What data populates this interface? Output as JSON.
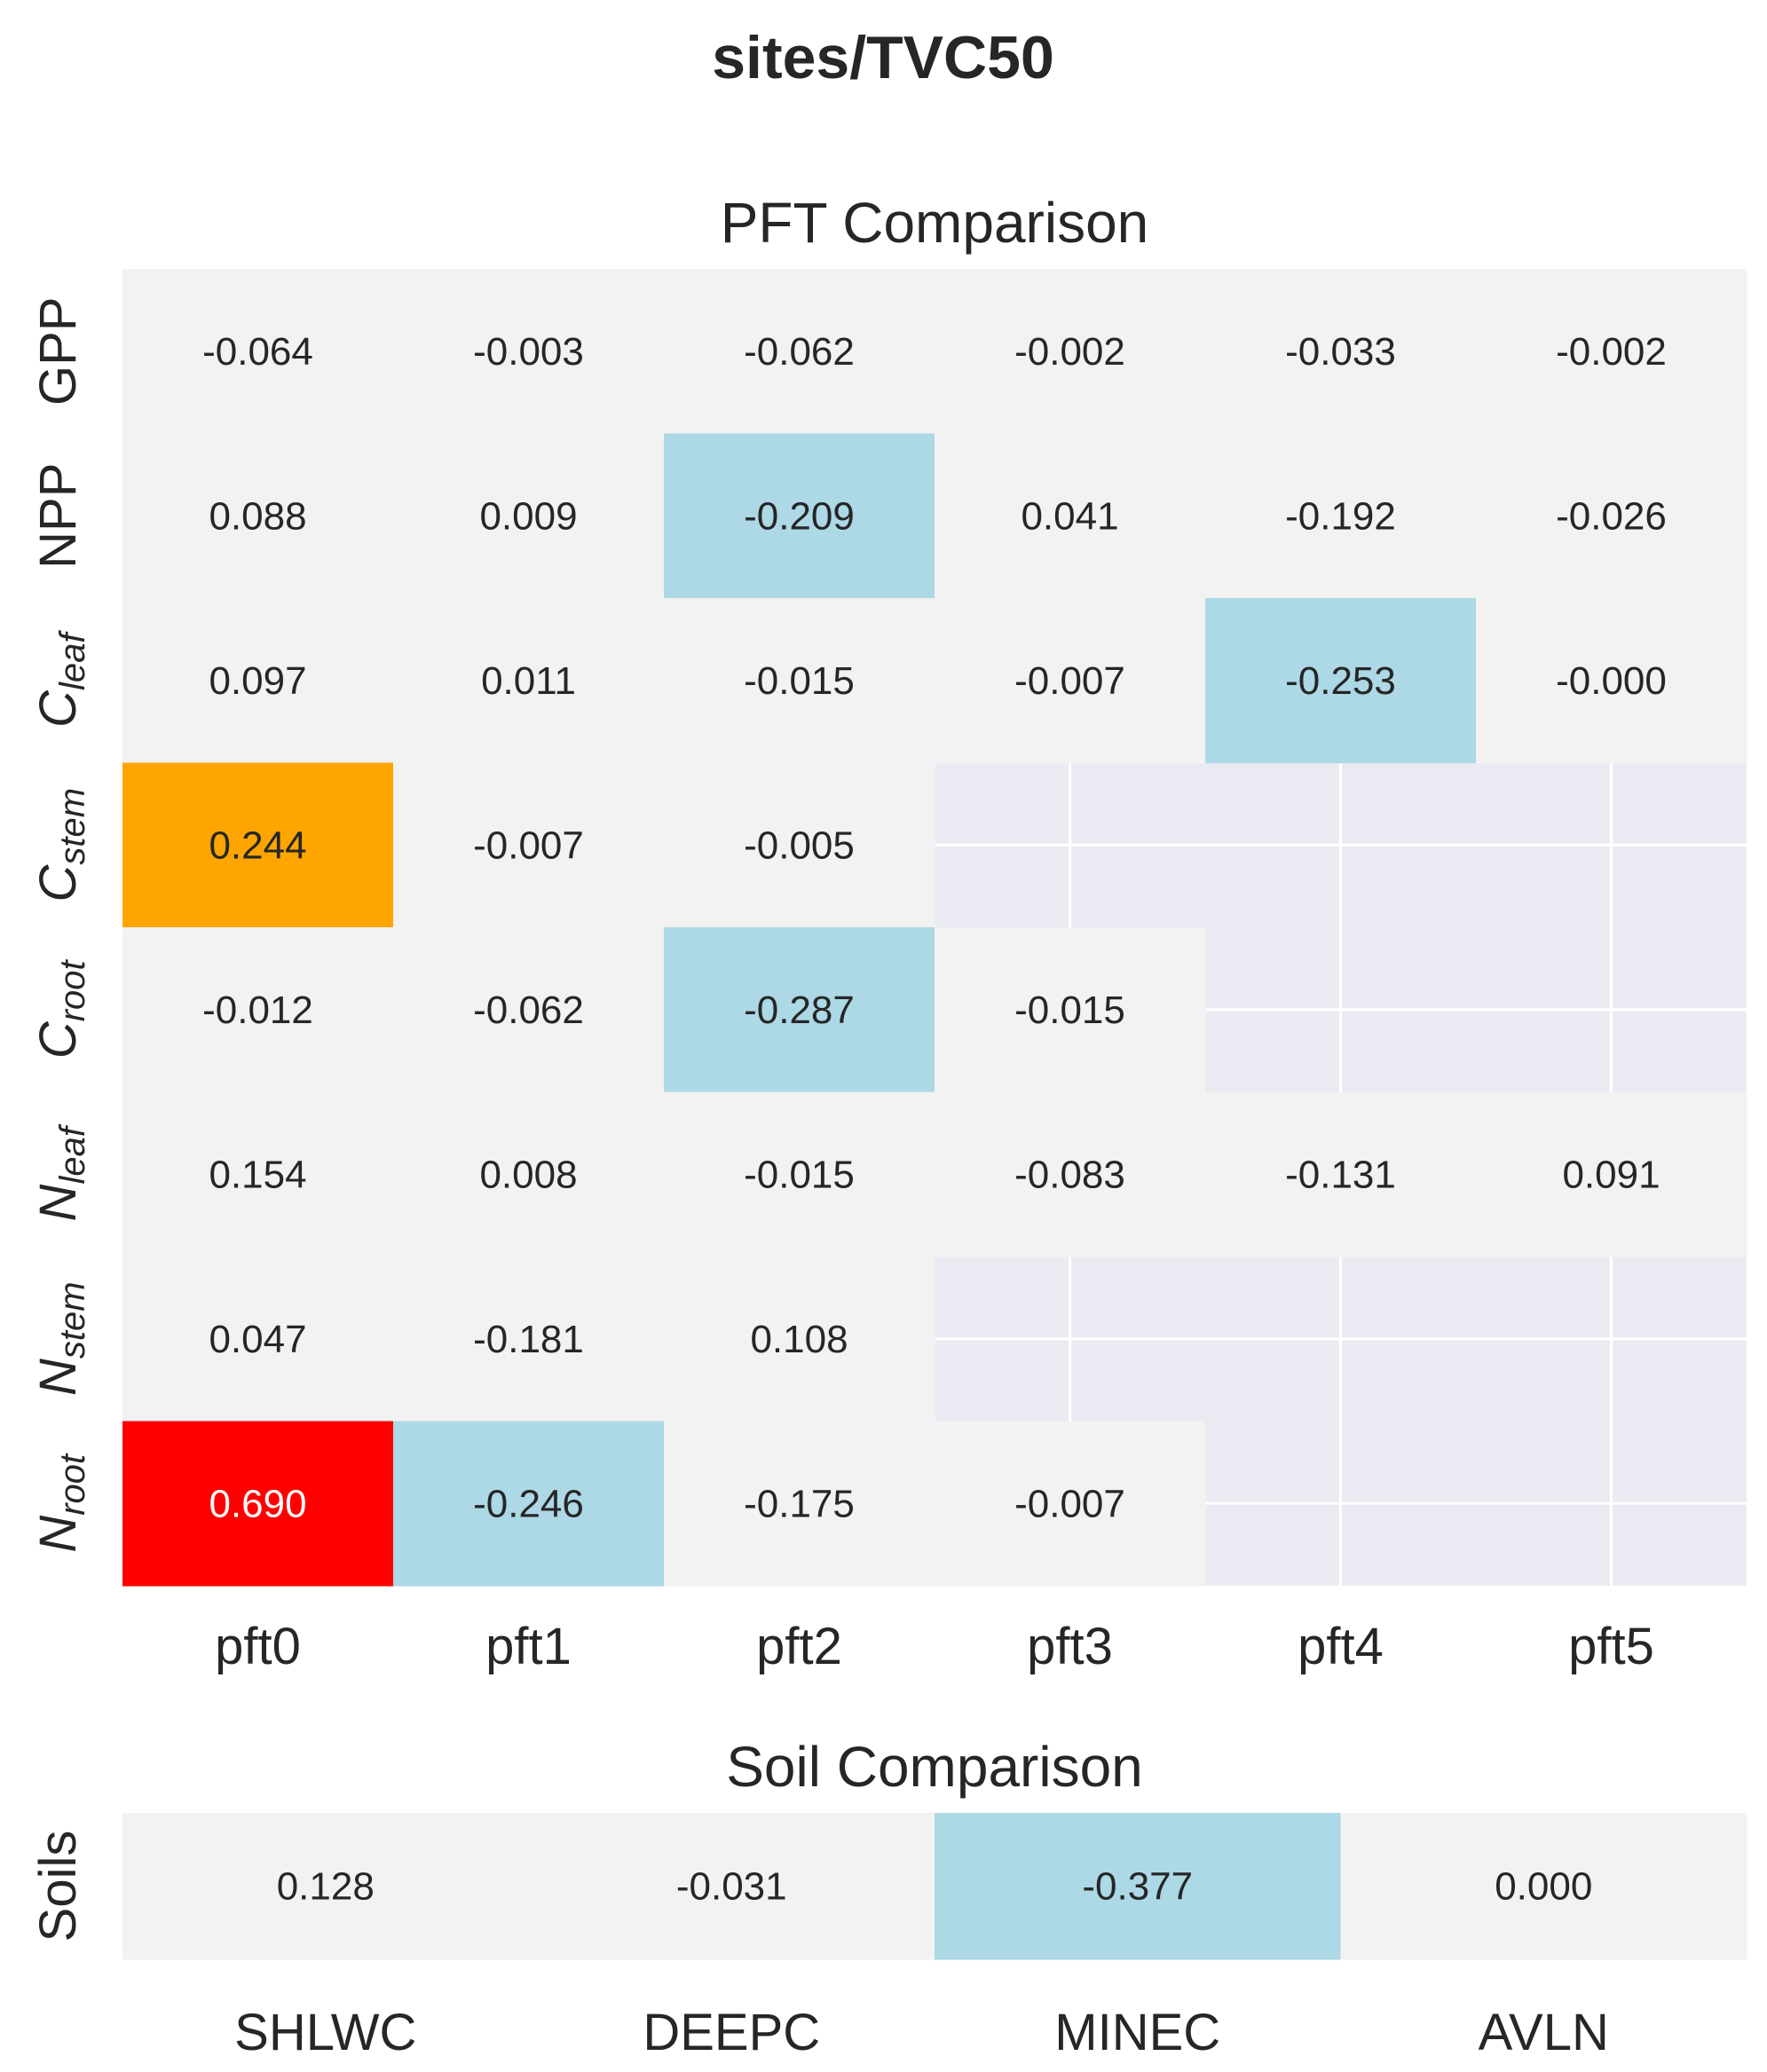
{
  "suptitle": "sites/TVC50",
  "chart_data": [
    {
      "type": "heatmap",
      "title": "PFT Comparison",
      "x_categories": [
        "pft0",
        "pft1",
        "pft2",
        "pft3",
        "pft4",
        "pft5"
      ],
      "y_categories": [
        {
          "main": "GPP",
          "sub": "",
          "italic": false
        },
        {
          "main": "NPP",
          "sub": "",
          "italic": false
        },
        {
          "main": "C",
          "sub": "leaf",
          "italic": true
        },
        {
          "main": "C",
          "sub": "stem",
          "italic": true
        },
        {
          "main": "C",
          "sub": "root",
          "italic": true
        },
        {
          "main": "N",
          "sub": "leaf",
          "italic": true
        },
        {
          "main": "N",
          "sub": "stem",
          "italic": true
        },
        {
          "main": "N",
          "sub": "root",
          "italic": true
        }
      ],
      "values": [
        [
          "-0.064",
          "-0.003",
          "-0.062",
          "-0.002",
          "-0.033",
          "-0.002"
        ],
        [
          "0.088",
          "0.009",
          "-0.209",
          "0.041",
          "-0.192",
          "-0.026"
        ],
        [
          "0.097",
          "0.011",
          "-0.015",
          "-0.007",
          "-0.253",
          "-0.000"
        ],
        [
          "0.244",
          "-0.007",
          "-0.005",
          null,
          null,
          null
        ],
        [
          "-0.012",
          "-0.062",
          "-0.287",
          "-0.015",
          null,
          null
        ],
        [
          "0.154",
          "0.008",
          "-0.015",
          "-0.083",
          "-0.131",
          "0.091"
        ],
        [
          "0.047",
          "-0.181",
          "0.108",
          null,
          null,
          null
        ],
        [
          "0.690",
          "-0.246",
          "-0.175",
          "-0.007",
          null,
          null
        ]
      ],
      "colors": {
        "neutral": "#f2f2f2",
        "negative": "#add8e6",
        "positive_mid": "#ffa500",
        "positive_high": "#ff0000",
        "missing": "#eaeaf2",
        "grid": "#ffffff",
        "text": "#262626",
        "text_on_dark": "#ffffff"
      },
      "thresholds": {
        "negative_below": -0.2,
        "positive_mid_above": 0.2,
        "positive_high_above": 0.5
      }
    },
    {
      "type": "heatmap",
      "title": "Soil Comparison",
      "x_categories": [
        "SHLWC",
        "DEEPC",
        "MINEC",
        "AVLN"
      ],
      "y_categories": [
        {
          "main": "Soils",
          "sub": "",
          "italic": false
        }
      ],
      "values": [
        [
          "0.128",
          "-0.031",
          "-0.377",
          "0.000"
        ]
      ],
      "colors": {
        "neutral": "#f2f2f2",
        "negative": "#add8e6",
        "positive_mid": "#ffa500",
        "positive_high": "#ff0000",
        "missing": "#eaeaf2",
        "grid": "#ffffff",
        "text": "#262626",
        "text_on_dark": "#ffffff"
      },
      "thresholds": {
        "negative_below": -0.2,
        "positive_mid_above": 0.2,
        "positive_high_above": 0.5
      }
    }
  ]
}
